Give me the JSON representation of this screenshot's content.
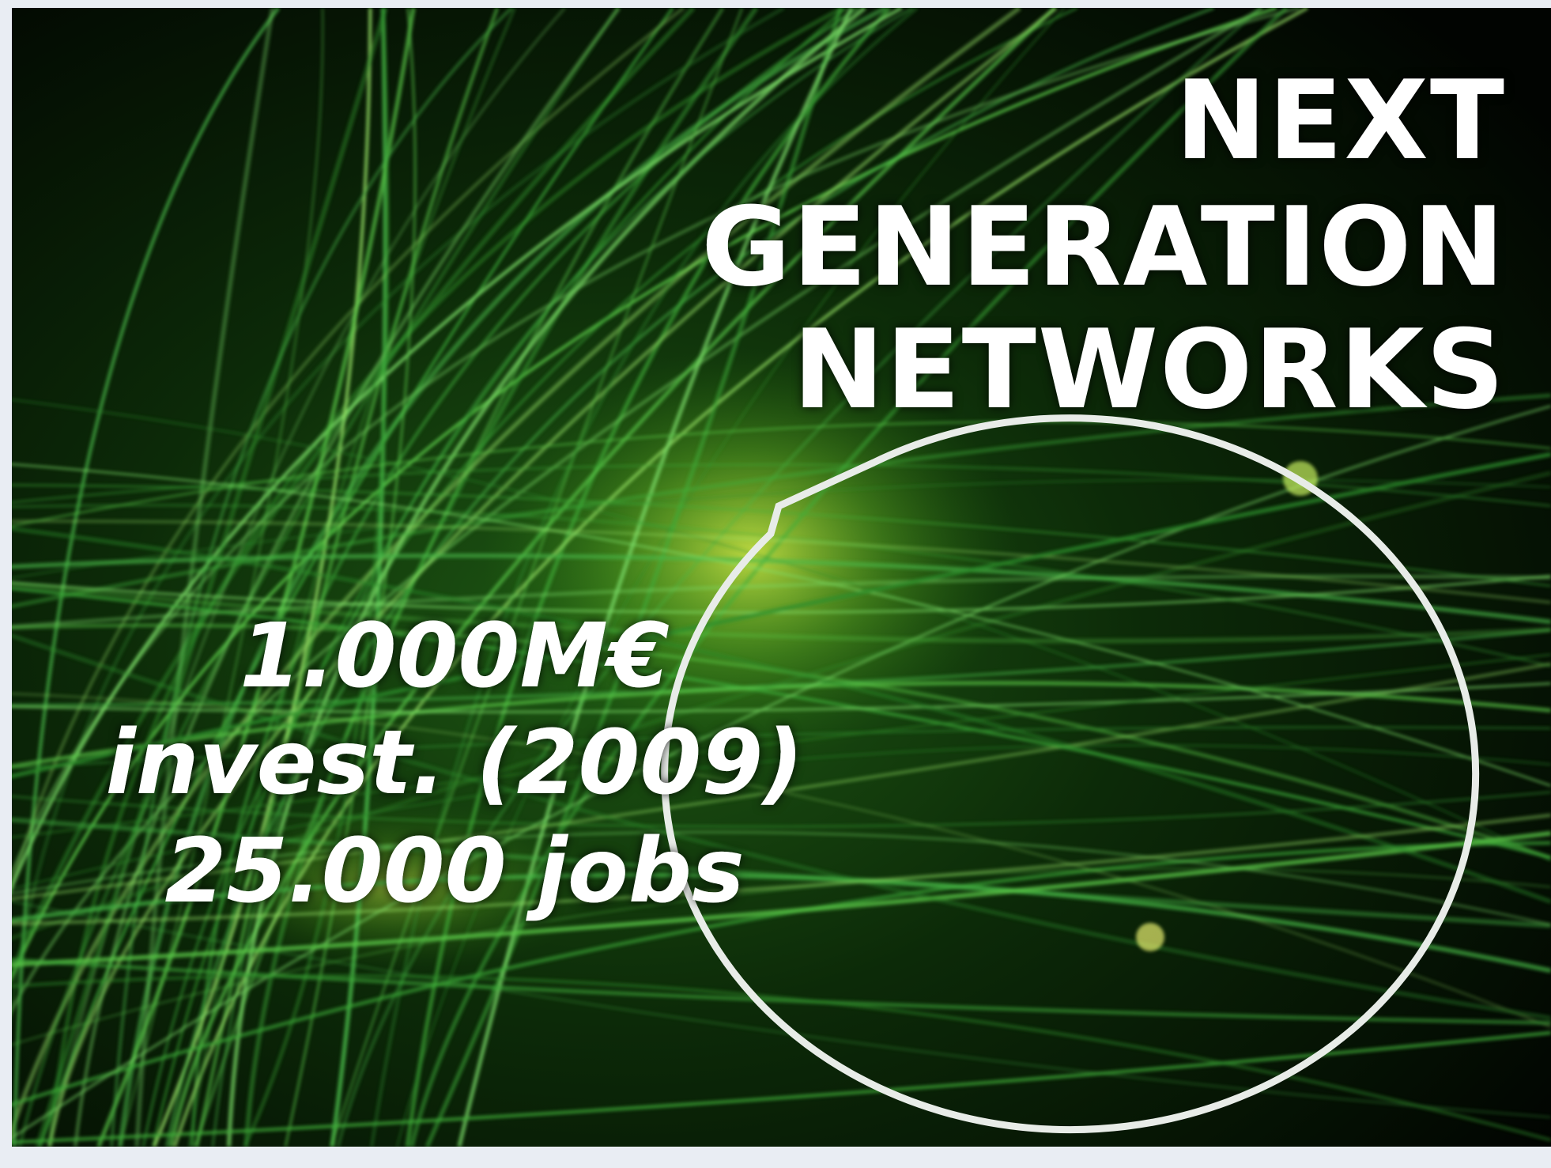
{
  "title": {
    "lines": [
      "NEXT",
      "GENERATION",
      "NETWORKS"
    ]
  },
  "bubble": {
    "lines": [
      "1.000M€",
      "invest. (2009)",
      "25.000 jobs"
    ]
  }
}
